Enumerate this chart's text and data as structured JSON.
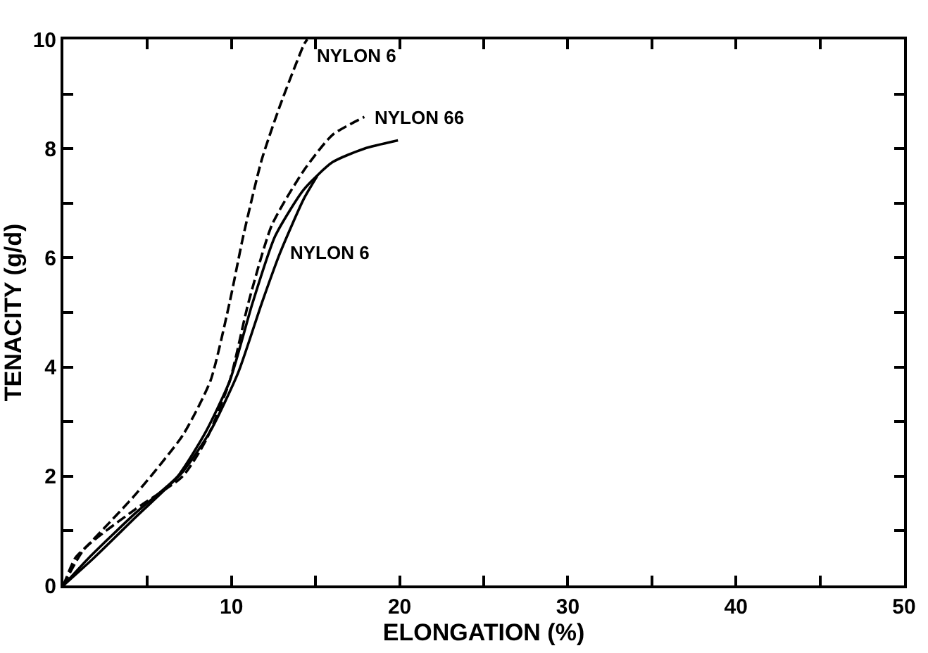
{
  "chart_data": {
    "type": "line",
    "xlabel": "ELONGATION (%)",
    "ylabel": "TENACITY (g/d)",
    "xlim": [
      0,
      50
    ],
    "ylim": [
      0,
      10
    ],
    "xticks": [
      {
        "value": 0,
        "label": null
      },
      {
        "value": 5,
        "label": null
      },
      10,
      {
        "value": 15,
        "label": null
      },
      20,
      {
        "value": 25,
        "label": null
      },
      30,
      {
        "value": 35,
        "label": null
      },
      40,
      {
        "value": 45,
        "label": null
      },
      50
    ],
    "yticks": [
      0,
      {
        "value": 1,
        "label": null
      },
      2,
      {
        "value": 3,
        "label": null
      },
      4,
      {
        "value": 5,
        "label": null
      },
      6,
      {
        "value": 7,
        "label": null
      },
      8,
      {
        "value": 9,
        "label": null
      },
      10
    ],
    "series": [
      {
        "color": "#000000",
        "line_style": "dashed",
        "x": [
          0,
          0.7,
          1.5,
          4.3,
          7.1,
          8.75,
          9.9,
          10.7,
          11.8,
          12.9,
          14.3,
          14.5
        ],
        "values": [
          0,
          0.5,
          0.75,
          1.67,
          2.75,
          3.75,
          5.2,
          6.4,
          7.8,
          8.8,
          9.9,
          10
        ]
      },
      {
        "color": "#000000",
        "line_style": "dashed",
        "x": [
          0,
          1.25,
          4.3,
          7.1,
          8.5,
          9.9,
          11,
          12.4,
          14.3,
          16,
          17.9
        ],
        "values": [
          0,
          0.67,
          1.4,
          2,
          2.67,
          3.75,
          5.17,
          6.6,
          7.6,
          8.25,
          8.58
        ]
      },
      {
        "color": "#000000",
        "line_style": "solid",
        "x": [
          0,
          1.5,
          4.3,
          6.8,
          8.5,
          9.9,
          11.25,
          12.6,
          14.3,
          16,
          17.9,
          19.9
        ],
        "values": [
          0,
          0.5,
          1.33,
          2,
          2.83,
          3.75,
          5.17,
          6.4,
          7.25,
          7.75,
          8,
          8.15
        ]
      },
      {
        "color": "#000000",
        "line_style": "solid",
        "x": [
          0,
          1.8,
          4.3,
          7.1,
          8.75,
          10.4,
          11.8,
          12.9,
          14.3,
          15.1
        ],
        "values": [
          0,
          0.5,
          1.25,
          2.08,
          2.83,
          3.9,
          5.17,
          6.1,
          7.08,
          7.5
        ]
      }
    ],
    "annotations": [
      {
        "text": "NYLON 6",
        "x": 14.5,
        "y": 9.7
      },
      {
        "text": "NYLON 66",
        "x": 17.9,
        "y": 8.58
      },
      {
        "text": "NYLON 6",
        "x": 12.9,
        "y": 6.1
      }
    ]
  }
}
